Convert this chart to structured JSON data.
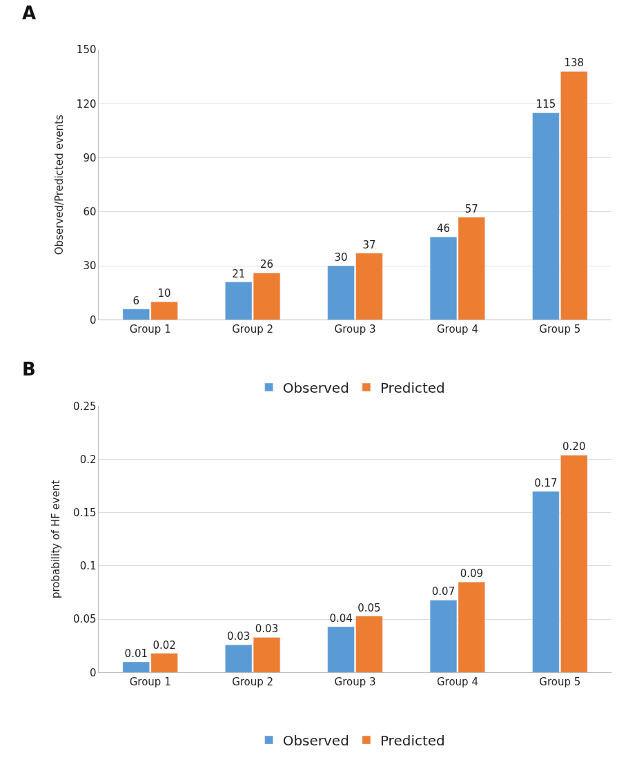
{
  "chart_data": [
    {
      "type": "bar",
      "title": "A",
      "ylabel": "Observed/Predicted events",
      "categories": [
        "Group 1",
        "Group 2",
        "Group 3",
        "Group 4",
        "Group 5"
      ],
      "series": [
        {
          "name": "Observed",
          "color": "#5b9bd5",
          "values": [
            6,
            21,
            30,
            46,
            115
          ]
        },
        {
          "name": "Predicted",
          "color": "#ed7d31",
          "values": [
            10,
            26,
            37,
            57,
            138
          ]
        }
      ],
      "ylim": [
        0,
        150
      ],
      "yticks": [
        0,
        30,
        60,
        90,
        120,
        150
      ],
      "grid": "y",
      "legend": "bottom",
      "data_labels": true
    },
    {
      "type": "bar",
      "title": "B",
      "ylabel": "probability of HF event",
      "categories": [
        "Group 1",
        "Group 2",
        "Group 3",
        "Group 4",
        "Group 5"
      ],
      "series": [
        {
          "name": "Observed",
          "color": "#5b9bd5",
          "values": [
            0.01,
            0.026,
            0.043,
            0.068,
            0.17
          ],
          "value_labels": [
            "0.01",
            "0.03",
            "0.04",
            "0.07",
            "0.17"
          ]
        },
        {
          "name": "Predicted",
          "color": "#ed7d31",
          "values": [
            0.018,
            0.033,
            0.053,
            0.085,
            0.204
          ],
          "value_labels": [
            "0.02",
            "0.03",
            "0.05",
            "0.09",
            "0.20"
          ]
        }
      ],
      "ylim": [
        0,
        0.25
      ],
      "yticks": [
        0,
        0.05,
        0.1,
        0.15,
        0.2,
        0.25
      ],
      "grid": "y",
      "legend": "bottom"
    }
  ]
}
